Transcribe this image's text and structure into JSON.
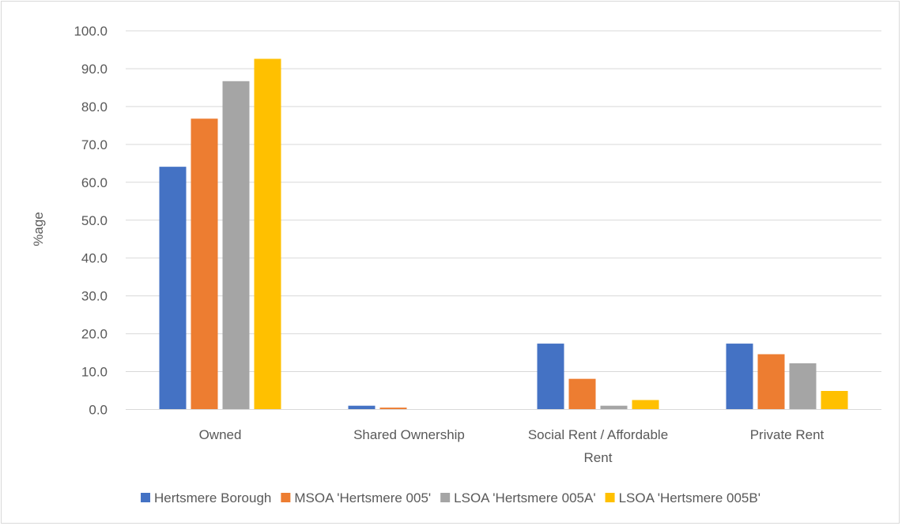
{
  "chart_data": {
    "type": "bar",
    "categories": [
      "Owned",
      "Shared Ownership",
      "Social Rent / Affordable Rent",
      "Private Rent"
    ],
    "category_lines": [
      [
        "Owned"
      ],
      [
        "Shared Ownership"
      ],
      [
        "Social Rent / Affordable",
        "Rent"
      ],
      [
        "Private Rent"
      ]
    ],
    "series": [
      {
        "name": "Hertsmere Borough",
        "values": [
          64.1,
          1.0,
          17.4,
          17.4
        ],
        "color": "#4472c4"
      },
      {
        "name": "MSOA 'Hertsmere 005'",
        "values": [
          76.8,
          0.5,
          8.1,
          14.6
        ],
        "color": "#ed7d31"
      },
      {
        "name": "LSOA 'Hertsmere 005A'",
        "values": [
          86.7,
          0.0,
          1.0,
          12.2
        ],
        "color": "#a5a5a5"
      },
      {
        "name": "LSOA 'Hertsmere 005B'",
        "values": [
          92.6,
          0.0,
          2.5,
          4.9
        ],
        "color": "#ffc000"
      }
    ],
    "ylabel": "%age",
    "xlabel": "",
    "ylim": [
      0,
      100
    ],
    "yticks": [
      "0.0",
      "10.0",
      "20.0",
      "30.0",
      "40.0",
      "50.0",
      "60.0",
      "70.0",
      "80.0",
      "90.0",
      "100.0"
    ],
    "grid": true,
    "gridColor": "#d9d9d9",
    "legend_position": "bottom"
  }
}
